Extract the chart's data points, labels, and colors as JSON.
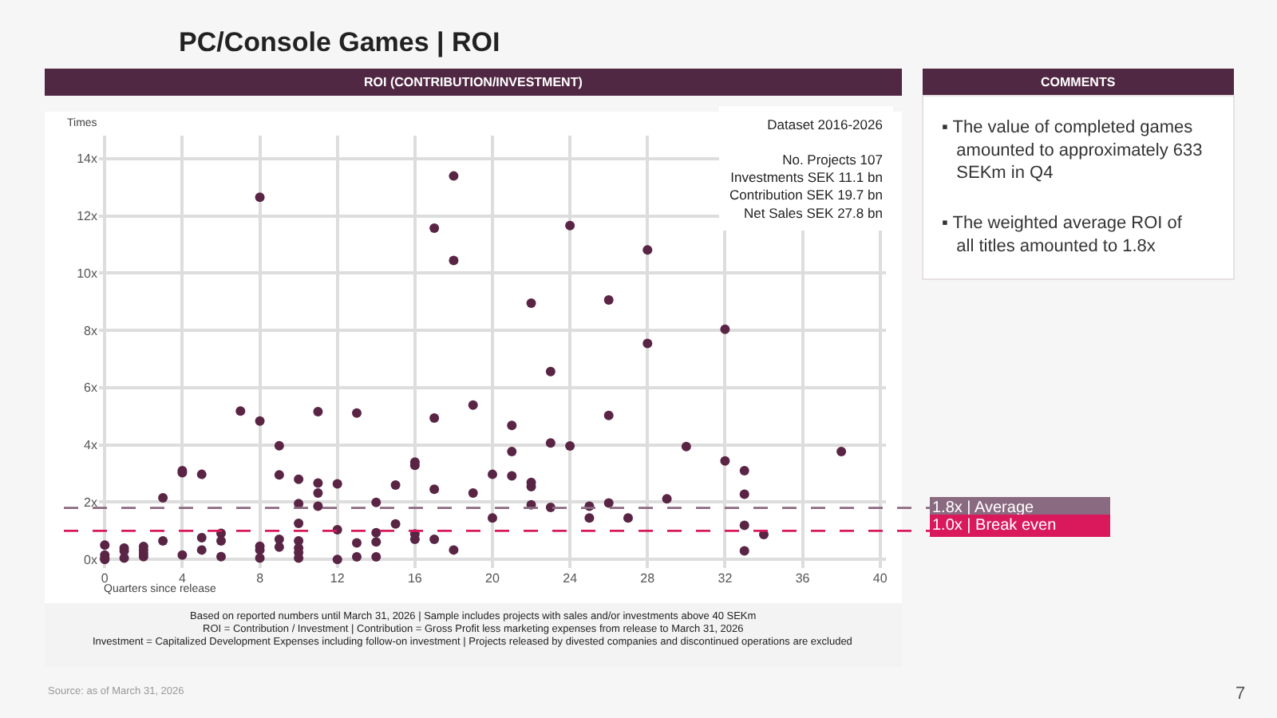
{
  "chart_data": {
    "type": "scatter",
    "title": "PC/Console Games | ROI",
    "subtitle": "ROI (CONTRIBUTION/INVESTMENT)",
    "xlabel": "Quarters since release",
    "ylabel": "Times",
    "x": [
      0,
      0,
      0,
      0,
      1,
      1,
      1,
      2,
      2,
      2,
      2,
      3,
      3,
      4,
      4,
      4,
      5,
      5,
      5,
      6,
      6,
      6,
      7,
      8,
      8,
      8,
      8,
      8,
      9,
      9,
      9,
      9,
      10,
      10,
      10,
      10,
      10,
      10,
      10,
      11,
      11,
      11,
      11,
      12,
      12,
      12,
      13,
      13,
      13,
      14,
      14,
      14,
      14,
      15,
      15,
      16,
      16,
      16,
      16,
      17,
      17,
      17,
      17,
      18,
      18,
      18,
      19,
      19,
      20,
      20,
      21,
      21,
      21,
      22,
      22,
      22,
      22,
      23,
      23,
      23,
      24,
      24,
      25,
      25,
      26,
      26,
      26,
      27,
      28,
      28,
      29,
      30,
      32,
      32,
      33,
      33,
      33,
      33,
      34,
      38
    ],
    "series": [
      {
        "color": "#5a2545",
        "values": [
          0.5,
          0.15,
          0.05,
          0.0,
          0.4,
          0.3,
          0.05,
          0.45,
          0.33,
          0.2,
          0.1,
          2.15,
          0.65,
          3.1,
          3.03,
          0.15,
          2.97,
          0.76,
          0.33,
          0.91,
          0.65,
          0.1,
          5.18,
          12.65,
          4.83,
          0.46,
          0.33,
          0.05,
          3.97,
          2.95,
          0.7,
          0.43,
          2.8,
          1.95,
          1.26,
          0.65,
          0.4,
          0.24,
          0.05,
          5.16,
          2.67,
          2.32,
          1.86,
          2.64,
          1.04,
          0.0,
          5.11,
          0.58,
          0.09,
          1.99,
          0.93,
          0.61,
          0.09,
          2.6,
          1.24,
          3.4,
          3.29,
          0.89,
          0.7,
          11.57,
          4.94,
          2.45,
          0.7,
          13.39,
          10.44,
          0.33,
          5.39,
          2.32,
          2.97,
          1.45,
          4.68,
          3.77,
          2.92,
          8.95,
          2.69,
          2.54,
          1.91,
          6.56,
          4.07,
          1.82,
          11.66,
          3.96,
          1.86,
          1.45,
          9.06,
          5.03,
          1.97,
          1.45,
          10.81,
          7.54,
          2.12,
          3.94,
          8.04,
          3.44,
          3.1,
          2.28,
          1.19,
          0.3,
          0.87,
          3.77
        ]
      }
    ],
    "xlim": [
      -0.3,
      40.3
    ],
    "xticks": [
      0,
      4,
      8,
      12,
      16,
      20,
      24,
      28,
      32,
      36,
      40
    ],
    "ylim": [
      -0.3,
      14.8
    ],
    "yticks": [
      {
        "value": 0,
        "label": "0x"
      },
      {
        "value": 2,
        "label": "2x"
      },
      {
        "value": 4,
        "label": "4x"
      },
      {
        "value": 6,
        "label": "6x"
      },
      {
        "value": 8,
        "label": "8x"
      },
      {
        "value": 10,
        "label": "10x"
      },
      {
        "value": 12,
        "label": "12x"
      },
      {
        "value": 14,
        "label": "14x"
      }
    ],
    "grid": true,
    "marker": "circle",
    "ref_lines": [
      {
        "axis": "y",
        "value": 1.8,
        "label": "1.8x | Average",
        "color": "#8a6a80",
        "line_style": "dashed"
      },
      {
        "axis": "y",
        "value": 1.0,
        "label": "1.0x | Break even",
        "color": "#d9195c",
        "line_style": "dashed"
      }
    ],
    "annotations": [
      "Dataset 2016-2026",
      "No. Projects 107",
      "Investments SEK 11.1 bn",
      "Contribution SEK 19.7 bn",
      "Net Sales SEK 27.8 bn",
      "COMMENTS",
      "▪ The value of completed games amounted to approximately 633 SEKm in Q4",
      "▪ The weighted average ROI of all titles amounted to 1.8x",
      "Based on reported numbers until March 31, 2026 | Sample includes projects with sales and/or investments above 40 SEKm",
      "ROI = Contribution / Investment | Contribution = Gross Profit less marketing expenses from release to March 31, 2026",
      "Investment = Capitalized Development Expenses including follow-on investment | Projects released by divested companies and discontinued operations are excluded",
      "Source: as of March 31, 2026",
      "7"
    ]
  }
}
